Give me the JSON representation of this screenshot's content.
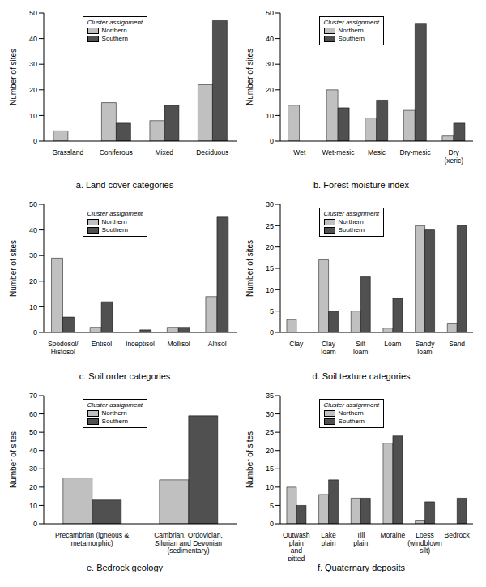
{
  "chart_data": [
    {
      "type": "bar",
      "title": "a. Land cover categories",
      "y_label": "Number of sites",
      "legend_title": "Cluster assignment",
      "legend": "top",
      "grid": false,
      "categories": [
        "Grassland",
        "Coniferous",
        "Mixed",
        "Deciduous"
      ],
      "series": [
        {
          "name": "Northern",
          "color": "#c0c0c0",
          "values": [
            4,
            15,
            8,
            22
          ]
        },
        {
          "name": "Southern",
          "color": "#505050",
          "values": [
            0,
            7,
            14,
            47
          ]
        }
      ],
      "ylim": [
        0,
        50
      ],
      "yticks": [
        0,
        10,
        20,
        30,
        40,
        50
      ]
    },
    {
      "type": "bar",
      "title": "b. Forest moisture index",
      "y_label": "Number of sites",
      "legend_title": "Cluster assignment",
      "legend": "top",
      "grid": false,
      "categories": [
        "Wet",
        "Wet-mesic",
        "Mesic",
        "Dry-mesic",
        "Dry (xeric)"
      ],
      "series": [
        {
          "name": "Northern",
          "color": "#c0c0c0",
          "values": [
            14,
            20,
            9,
            12,
            2
          ]
        },
        {
          "name": "Southern",
          "color": "#505050",
          "values": [
            0,
            13,
            16,
            46,
            7
          ]
        }
      ],
      "ylim": [
        0,
        50
      ],
      "yticks": [
        0,
        10,
        20,
        30,
        40,
        50
      ]
    },
    {
      "type": "bar",
      "title": "c. Soil order categories",
      "y_label": "Number of sites",
      "legend_title": "Cluster assignment",
      "legend": "top",
      "grid": false,
      "categories": [
        "Spodosol/ Histosol",
        "Entisol",
        "Inceptisol",
        "Mollisol",
        "Alfisol"
      ],
      "series": [
        {
          "name": "Northern",
          "color": "#c0c0c0",
          "values": [
            29,
            2,
            0,
            2,
            14
          ]
        },
        {
          "name": "Southern",
          "color": "#505050",
          "values": [
            6,
            12,
            1,
            2,
            45
          ]
        }
      ],
      "ylim": [
        0,
        50
      ],
      "yticks": [
        0,
        10,
        20,
        30,
        40,
        50
      ]
    },
    {
      "type": "bar",
      "title": "d. Soil texture categories",
      "y_label": "Number of sites",
      "legend_title": "Cluster assignment",
      "legend": "top",
      "grid": false,
      "categories": [
        "Clay",
        "Clay loam",
        "Silt loam",
        "Loam",
        "Sandy loam",
        "Sand"
      ],
      "series": [
        {
          "name": "Northern",
          "color": "#c0c0c0",
          "values": [
            3,
            17,
            5,
            1,
            25,
            2
          ]
        },
        {
          "name": "Southern",
          "color": "#505050",
          "values": [
            0,
            5,
            13,
            8,
            24,
            25
          ]
        }
      ],
      "ylim": [
        0,
        30
      ],
      "yticks": [
        0,
        5,
        10,
        15,
        20,
        25,
        30
      ]
    },
    {
      "type": "bar",
      "title": "e. Bedrock geology",
      "y_label": "Number of sites",
      "legend_title": "Cluster assignment",
      "legend": "top",
      "grid": false,
      "categories": [
        "Precambrian (igneous & metamorphic)",
        "Cambrian, Ordovician, Silurian and Devonian (sedimentary)"
      ],
      "series": [
        {
          "name": "Northern",
          "color": "#c0c0c0",
          "values": [
            25,
            24
          ]
        },
        {
          "name": "Southern",
          "color": "#505050",
          "values": [
            13,
            59
          ]
        }
      ],
      "ylim": [
        0,
        70
      ],
      "yticks": [
        0,
        10,
        20,
        30,
        40,
        50,
        60,
        70
      ]
    },
    {
      "type": "bar",
      "title": "f. Quaternary deposits",
      "y_label": "Number of sites",
      "legend_title": "Cluster assignment",
      "legend": "top",
      "grid": false,
      "categories": [
        "Outwash plain and pitted outwash",
        "Lake plain",
        "Till plain",
        "Moraine",
        "Loess (windblown silt)",
        "Bedrock"
      ],
      "series": [
        {
          "name": "Northern",
          "color": "#c0c0c0",
          "values": [
            10,
            8,
            7,
            22,
            1,
            0
          ]
        },
        {
          "name": "Southern",
          "color": "#505050",
          "values": [
            5,
            12,
            7,
            24,
            6,
            7
          ]
        }
      ],
      "ylim": [
        0,
        35
      ],
      "yticks": [
        0,
        5,
        10,
        15,
        20,
        25,
        30,
        35
      ]
    }
  ]
}
